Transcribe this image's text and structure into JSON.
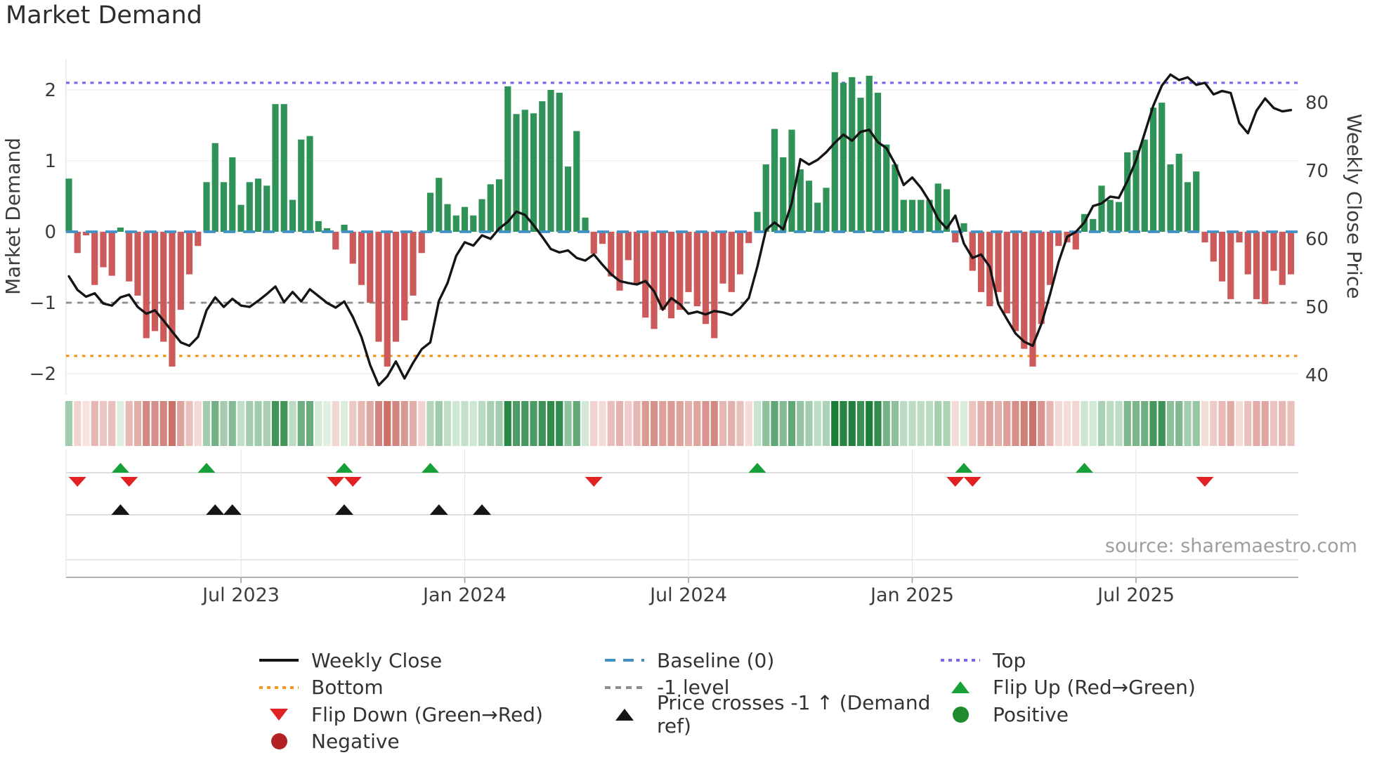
{
  "title": "Market Demand",
  "source": "source: sharemaestro.com",
  "colors": {
    "positive_bar": "#2f9357",
    "negative_bar": "#cd5a5a",
    "price_line": "#151515",
    "baseline": "#4191c5",
    "top_line": "#7b68ee",
    "bottom_line": "#f5961f",
    "minus1_line": "#8c8c8c",
    "flip_up": "#16a038",
    "flip_down": "#e02222",
    "price_cross": "#151515",
    "heat_pos_hi": "#157a33",
    "heat_pos_lo": "#e3f2e6",
    "heat_neg_hi": "#c05850",
    "heat_neg_lo": "#f8e5e2",
    "grid": "#ededed",
    "axis": "#9c9c9c"
  },
  "chart_data": {
    "type": "bar+line",
    "title": "Market Demand",
    "left_axis": {
      "label": "Market Demand",
      "ticks": [
        {
          "label": "2",
          "value": 2
        },
        {
          "label": "1",
          "value": 1
        },
        {
          "label": "0",
          "value": 0
        },
        {
          "label": "−1",
          "value": -1
        },
        {
          "label": "−2",
          "value": -2
        }
      ],
      "range": [
        -2.35,
        2.45
      ]
    },
    "right_axis": {
      "label": "Weekly Close Price",
      "ticks": [
        {
          "label": "80",
          "value": 80
        },
        {
          "label": "70",
          "value": 70
        },
        {
          "label": "60",
          "value": 60
        },
        {
          "label": "50",
          "value": 50
        },
        {
          "label": "40",
          "value": 40
        }
      ],
      "range": [
        37,
        86
      ]
    },
    "x_ticks": [
      {
        "label": "Jul 2023",
        "week": 20
      },
      {
        "label": "Jan 2024",
        "week": 46
      },
      {
        "label": "Jul 2024",
        "week": 72
      },
      {
        "label": "Jan 2025",
        "week": 98
      },
      {
        "label": "Jul 2025",
        "week": 124
      }
    ],
    "ref_lines": {
      "top": 2.1,
      "baseline": 0,
      "minus1": -1,
      "bottom": -1.75
    },
    "grid": "horizontal",
    "legend_position": "bottom",
    "series_names": [
      "Market Demand (weekly bars)",
      "Weekly Close (price line)"
    ],
    "demand": [
      0.75,
      -0.3,
      -0.05,
      -0.75,
      -0.5,
      -0.62,
      0.06,
      -0.7,
      -0.9,
      -1.5,
      -1.4,
      -1.55,
      -1.9,
      -1.1,
      -0.6,
      -0.2,
      0.7,
      1.25,
      0.7,
      1.05,
      0.38,
      0.7,
      0.75,
      0.65,
      1.8,
      1.8,
      0.45,
      1.3,
      1.35,
      0.15,
      0.05,
      -0.25,
      0.1,
      -0.45,
      -0.75,
      -1.0,
      -1.55,
      -1.9,
      -1.55,
      -1.25,
      -0.9,
      -0.3,
      0.55,
      0.76,
      0.39,
      0.23,
      0.35,
      0.23,
      0.46,
      0.67,
      0.74,
      2.05,
      1.66,
      1.72,
      1.67,
      1.84,
      2.0,
      1.96,
      0.92,
      1.42,
      0.2,
      -0.31,
      -0.17,
      -0.63,
      -0.83,
      -0.4,
      -0.73,
      -1.21,
      -1.37,
      -1.1,
      -1.22,
      -1.1,
      -0.85,
      -1.05,
      -1.3,
      -1.5,
      -0.73,
      -0.85,
      -0.6,
      -0.16,
      0.28,
      0.95,
      1.45,
      1.05,
      1.44,
      0.88,
      0.72,
      0.41,
      0.62,
      2.25,
      2.1,
      2.18,
      1.89,
      2.2,
      1.96,
      1.23,
      0.95,
      0.45,
      0.45,
      0.45,
      0.45,
      0.68,
      0.6,
      -0.15,
      0.12,
      -0.55,
      -0.85,
      -1.05,
      -0.85,
      -1.15,
      -1.4,
      -1.65,
      -1.9,
      -1.3,
      -0.75,
      -0.2,
      -0.15,
      -0.25,
      0.25,
      0.18,
      0.65,
      0.45,
      0.42,
      1.12,
      1.15,
      1.3,
      1.75,
      1.82,
      0.95,
      1.1,
      0.7,
      0.85,
      -0.15,
      -0.42,
      -0.7,
      -0.95,
      -0.15,
      -0.6,
      -0.95,
      -1.02,
      -0.55,
      -0.75,
      -0.6
    ],
    "price": [
      54.5,
      52.5,
      51.5,
      52.0,
      50.5,
      50.2,
      51.4,
      51.8,
      50.0,
      49.0,
      49.5,
      48.0,
      46.4,
      44.8,
      44.3,
      45.6,
      49.5,
      51.4,
      50.0,
      51.2,
      50.2,
      50.0,
      50.9,
      51.9,
      53.0,
      50.7,
      52.2,
      50.8,
      52.6,
      51.6,
      50.6,
      49.9,
      50.8,
      48.5,
      45.6,
      41.5,
      38.5,
      39.8,
      42.0,
      39.5,
      41.8,
      43.8,
      44.8,
      50.9,
      53.5,
      57.5,
      59.5,
      59.0,
      60.5,
      60.0,
      61.5,
      62.5,
      64.0,
      63.5,
      62.0,
      60.3,
      58.5,
      58.0,
      58.3,
      57.2,
      56.8,
      57.7,
      56.2,
      54.8,
      53.8,
      53.5,
      53.3,
      53.8,
      52.3,
      49.6,
      51.3,
      50.4,
      49.0,
      49.3,
      48.9,
      49.4,
      49.2,
      48.8,
      49.8,
      51.3,
      55.9,
      61.3,
      62.4,
      61.4,
      65.3,
      71.7,
      70.9,
      71.6,
      72.7,
      74.1,
      75.3,
      74.4,
      75.7,
      76.0,
      74.2,
      73.3,
      71.0,
      67.9,
      69.0,
      67.5,
      65.5,
      62.9,
      61.5,
      63.4,
      59.3,
      57.2,
      57.7,
      55.9,
      50.4,
      48.2,
      46.1,
      44.9,
      44.3,
      47.5,
      51.8,
      56.6,
      60.3,
      61.0,
      62.4,
      64.8,
      65.2,
      66.2,
      66.0,
      68.5,
      71.5,
      75.5,
      79.5,
      82.5,
      84.1,
      83.3,
      83.7,
      82.6,
      82.9,
      81.2,
      81.7,
      81.4,
      77.0,
      75.5,
      78.8,
      80.6,
      79.2,
      78.7,
      78.9
    ],
    "markers": {
      "flip_up_weeks": [
        6,
        16,
        32,
        42,
        80,
        104,
        118
      ],
      "flip_down_weeks": [
        1,
        7,
        31,
        33,
        61,
        103,
        105,
        132
      ],
      "price_cross_weeks": [
        6,
        17,
        19,
        32,
        43,
        48
      ]
    },
    "heat_strip": "per-week red/green intensity derived from demand value"
  },
  "legend": {
    "items": [
      {
        "label": "Weekly Close",
        "swatch": "line-black"
      },
      {
        "label": "Baseline (0)",
        "swatch": "dash-blue"
      },
      {
        "label": "Top",
        "swatch": "dot-purple"
      },
      {
        "label": "Bottom",
        "swatch": "dot-orange"
      },
      {
        "label": "-1 level",
        "swatch": "dash-gray"
      },
      {
        "label": "Flip Up (Red→Green)",
        "swatch": "tri-up-green"
      },
      {
        "label": "Flip Down (Green→Red)",
        "swatch": "tri-down-red"
      },
      {
        "label": "Price crosses -1 ↑ (Demand ref)",
        "swatch": "tri-up-black"
      },
      {
        "label": "Positive",
        "swatch": "circle-green"
      },
      {
        "label": "Negative",
        "swatch": "circle-red"
      }
    ]
  }
}
